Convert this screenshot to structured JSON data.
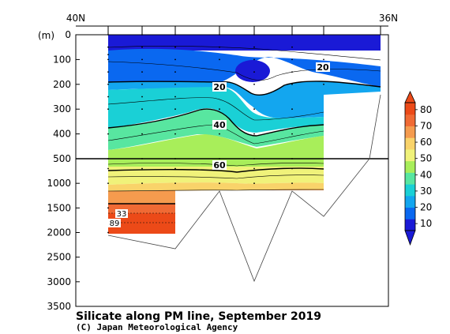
{
  "chart_data": {
    "type": "heatmap",
    "title": "Silicate along PM line, September 2019",
    "credit": "(C) Japan Meteorological Agency",
    "x_start_label": "40N",
    "x_end_label": "36N",
    "y_unit": "(m)",
    "y_ticks_upper": [
      0,
      100,
      200,
      300,
      400,
      500
    ],
    "y_ticks_lower": [
      1000,
      1500,
      2000,
      2500,
      3000,
      3500
    ],
    "ylim_upper": [
      0,
      500
    ],
    "ylim_lower": [
      500,
      3500
    ],
    "colorbar": {
      "levels": [
        10,
        20,
        30,
        40,
        50,
        60,
        70,
        80
      ],
      "colors": [
        "#1a1ad6",
        "#0a68f0",
        "#13a6ef",
        "#1ad0d6",
        "#58e6a0",
        "#a8ee5a",
        "#f0f27a",
        "#f9d36a",
        "#f59b4e",
        "#f06a34",
        "#ec4a18"
      ]
    },
    "contour_labels": [
      "20",
      "20",
      "40",
      "60",
      "33",
      "89"
    ],
    "profiles": [
      {
        "station": 1,
        "bottom_depth": 2060,
        "silicate": [
          [
            0,
            3
          ],
          [
            50,
            5
          ],
          [
            80,
            10
          ],
          [
            100,
            14
          ],
          [
            150,
            18
          ],
          [
            200,
            22
          ],
          [
            250,
            27
          ],
          [
            300,
            30
          ],
          [
            400,
            38
          ],
          [
            500,
            48
          ],
          [
            700,
            60
          ],
          [
            1000,
            72
          ],
          [
            1500,
            80
          ],
          [
            2000,
            89
          ]
        ]
      },
      {
        "station": 2,
        "bottom_depth": 2330,
        "silicate": [
          [
            0,
            3
          ],
          [
            50,
            6
          ],
          [
            100,
            12
          ],
          [
            150,
            18
          ],
          [
            200,
            22
          ],
          [
            250,
            28
          ],
          [
            300,
            32
          ],
          [
            400,
            40
          ],
          [
            500,
            50
          ],
          [
            700,
            60
          ],
          [
            1000,
            72
          ]
        ]
      },
      {
        "station": 3,
        "bottom_depth": 1130,
        "silicate": [
          [
            0,
            3
          ],
          [
            50,
            6
          ],
          [
            100,
            14
          ],
          [
            150,
            18
          ],
          [
            200,
            21
          ],
          [
            250,
            24
          ],
          [
            300,
            30
          ],
          [
            400,
            40
          ],
          [
            500,
            48
          ],
          [
            700,
            58
          ],
          [
            1000,
            70
          ]
        ]
      },
      {
        "station": 4,
        "bottom_depth": 2980,
        "silicate": [
          [
            0,
            4
          ],
          [
            50,
            6
          ],
          [
            100,
            8
          ],
          [
            200,
            12
          ],
          [
            300,
            22
          ],
          [
            400,
            35
          ],
          [
            500,
            44
          ],
          [
            700,
            62
          ],
          [
            1000,
            72
          ]
        ]
      },
      {
        "station": 5,
        "bottom_depth": 1180,
        "silicate": [
          [
            0,
            3
          ],
          [
            50,
            6
          ],
          [
            100,
            12
          ],
          [
            150,
            20
          ],
          [
            200,
            26
          ],
          [
            300,
            35
          ],
          [
            400,
            44
          ],
          [
            500,
            50
          ],
          [
            700,
            60
          ],
          [
            1000,
            71
          ]
        ]
      },
      {
        "station": 6,
        "bottom_depth": 1700,
        "silicate": [
          [
            0,
            3
          ],
          [
            50,
            7
          ],
          [
            100,
            15
          ],
          [
            150,
            22
          ],
          [
            200,
            26
          ],
          [
            300,
            32
          ],
          [
            400,
            42
          ],
          [
            500,
            50
          ],
          [
            700,
            60
          ],
          [
            1000,
            72
          ]
        ]
      },
      {
        "station": 7,
        "bottom_depth": 500,
        "silicate": [
          [
            0,
            4
          ],
          [
            100,
            16
          ],
          [
            200,
            25
          ]
        ]
      },
      {
        "station": 8,
        "bottom_depth": 250,
        "silicate": []
      }
    ]
  }
}
